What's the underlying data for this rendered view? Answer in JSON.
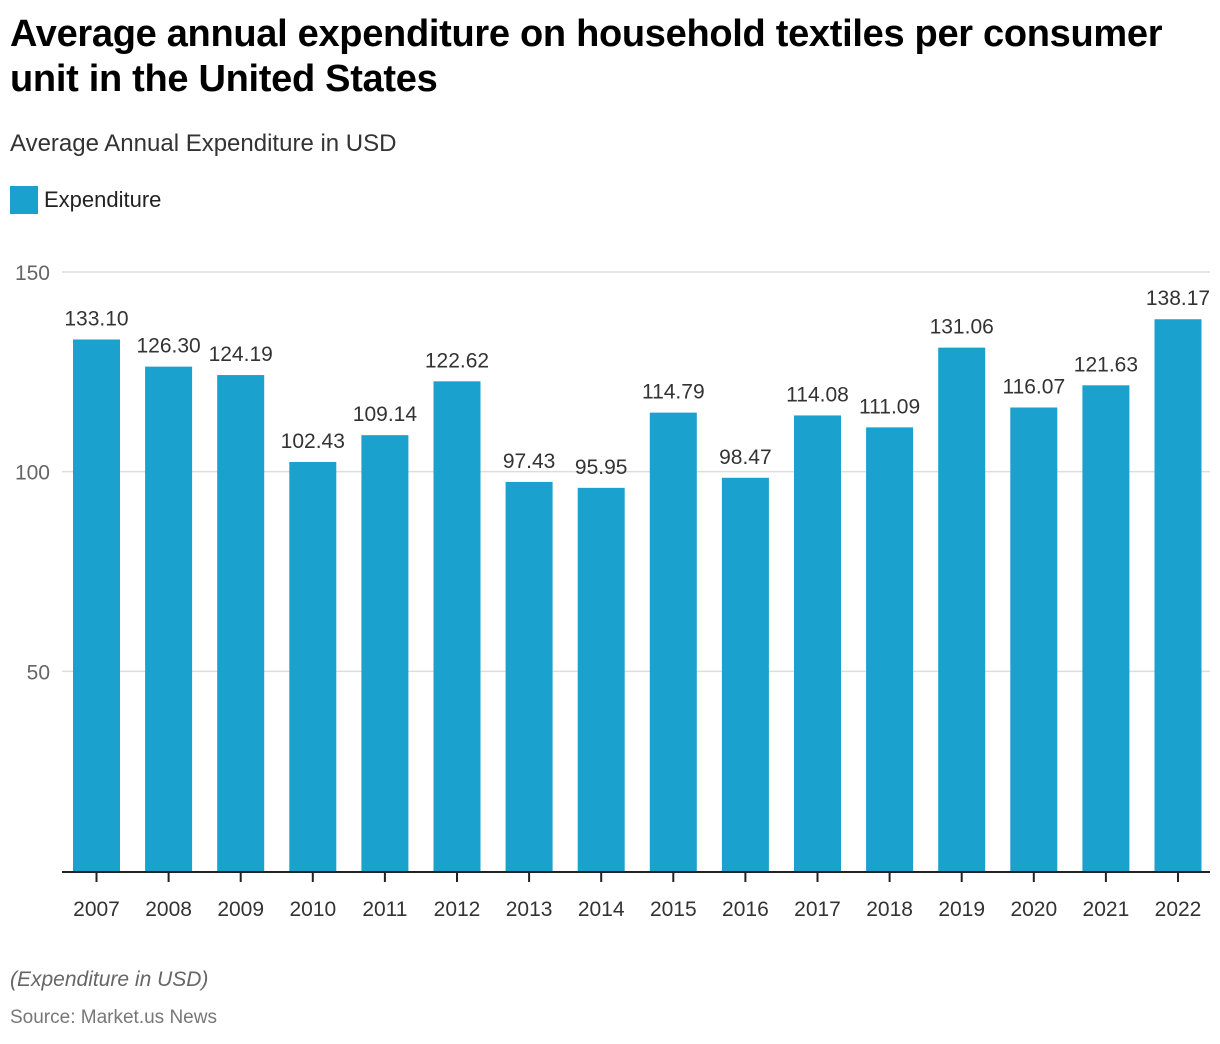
{
  "title": "Average annual expenditure on household textiles per consumer unit in the United States",
  "subtitle": "Average Annual Expenditure in USD",
  "note": "(Expenditure in USD)",
  "source": "Source: Market.us News",
  "colors": {
    "bar": "#1aa1cd",
    "grid": "#dddddd",
    "axis": "#222222",
    "label": "#333333",
    "tick_label": "#666666"
  },
  "chart_data": {
    "type": "bar",
    "title": "Average annual expenditure on household textiles per consumer unit in the United States",
    "subtitle": "Average Annual Expenditure in USD",
    "xlabel": "",
    "ylabel": "",
    "ylim": [
      0,
      150
    ],
    "yticks": [
      50,
      100,
      150
    ],
    "grid": true,
    "legend": {
      "position": "top-left",
      "entries": [
        "Expenditure"
      ]
    },
    "categories": [
      "2007",
      "2008",
      "2009",
      "2010",
      "2011",
      "2012",
      "2013",
      "2014",
      "2015",
      "2016",
      "2017",
      "2018",
      "2019",
      "2020",
      "2021",
      "2022"
    ],
    "series": [
      {
        "name": "Expenditure",
        "values": [
          133.1,
          126.3,
          124.19,
          102.43,
          109.14,
          122.62,
          97.43,
          95.95,
          114.79,
          98.47,
          114.08,
          111.09,
          131.06,
          116.07,
          121.63,
          138.17
        ],
        "labels": [
          "133.10",
          "126.30",
          "124.19",
          "102.43",
          "109.14",
          "122.62",
          "97.43",
          "95.95",
          "114.79",
          "98.47",
          "114.08",
          "111.09",
          "131.06",
          "116.07",
          "121.63",
          "138.17"
        ]
      }
    ]
  }
}
